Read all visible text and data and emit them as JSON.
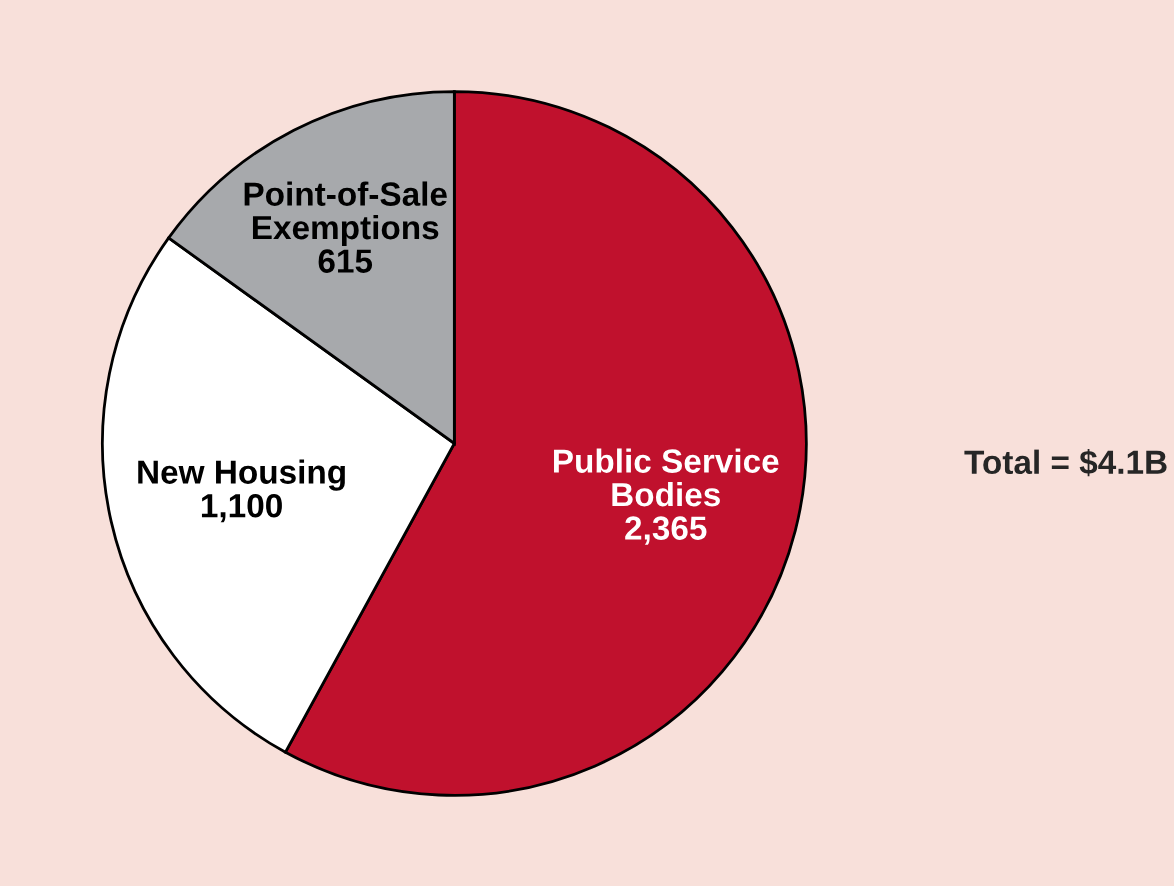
{
  "chart_data": {
    "type": "pie",
    "categories": [
      "Public Service Bodies",
      "New Housing",
      "Point-of-Sale Exemptions"
    ],
    "values": [
      2365,
      1100,
      615
    ],
    "value_labels": [
      "2,365",
      "1,100",
      "615"
    ],
    "colors": [
      "#c0112d",
      "#ffffff",
      "#a7a9ac"
    ],
    "annotations": [
      "Total = $4.1B"
    ],
    "legend": false
  }
}
